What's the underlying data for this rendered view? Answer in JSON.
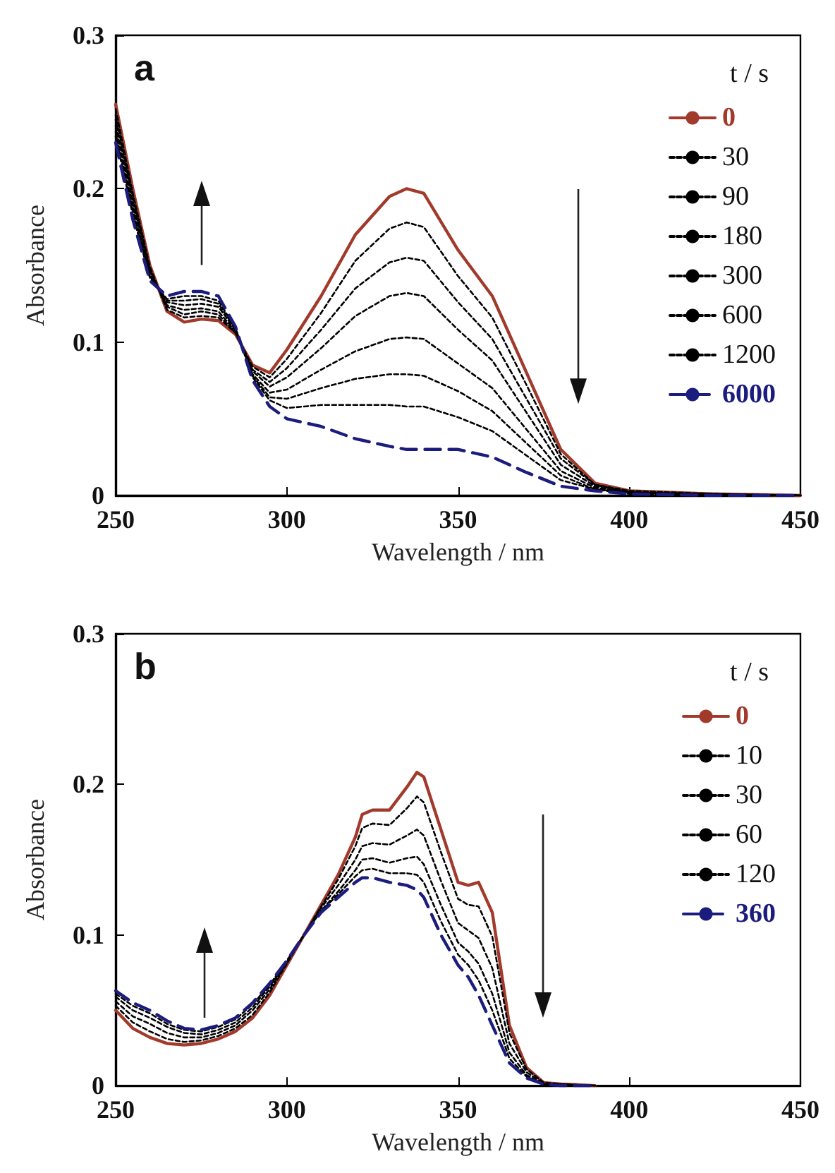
{
  "chart_data": [
    {
      "type": "line",
      "annotations": [
        "a"
      ],
      "xlabel": "Wavelength / nm",
      "ylabel": "Absorbance",
      "legend_title": "t / s",
      "legend": "top right",
      "marker": "none",
      "grid": false,
      "xlim": [
        250,
        450
      ],
      "xticks": [
        250,
        300,
        350,
        400,
        450
      ],
      "ylim": [
        0,
        0.3
      ],
      "yticks": [
        0,
        0.1,
        0.2,
        0.3
      ],
      "x": [
        250,
        255,
        260,
        265,
        270,
        275,
        280,
        285,
        290,
        295,
        300,
        310,
        320,
        330,
        335,
        340,
        350,
        360,
        370,
        380,
        390,
        400,
        425,
        450
      ],
      "series": [
        {
          "name": "0",
          "color": "#a23a2c",
          "line_style": "solid",
          "values": [
            0.255,
            0.2,
            0.15,
            0.12,
            0.113,
            0.115,
            0.114,
            0.105,
            0.085,
            0.08,
            0.095,
            0.13,
            0.17,
            0.195,
            0.2,
            0.197,
            0.16,
            0.13,
            0.08,
            0.03,
            0.008,
            0.003,
            0.001,
            0
          ]
        },
        {
          "name": "30",
          "color": "#000000",
          "line_style": "dotted",
          "values": [
            0.252,
            0.197,
            0.149,
            0.121,
            0.116,
            0.117,
            0.116,
            0.106,
            0.084,
            0.077,
            0.089,
            0.119,
            0.153,
            0.174,
            0.178,
            0.175,
            0.143,
            0.116,
            0.072,
            0.027,
            0.007,
            0.003,
            0.001,
            0
          ]
        },
        {
          "name": "90",
          "color": "#000000",
          "line_style": "dotted",
          "values": [
            0.248,
            0.195,
            0.147,
            0.123,
            0.118,
            0.12,
            0.118,
            0.106,
            0.082,
            0.074,
            0.083,
            0.108,
            0.135,
            0.152,
            0.155,
            0.153,
            0.126,
            0.102,
            0.063,
            0.024,
            0.007,
            0.002,
            0.001,
            0
          ]
        },
        {
          "name": "180",
          "color": "#000000",
          "line_style": "dotted",
          "values": [
            0.245,
            0.192,
            0.146,
            0.124,
            0.121,
            0.122,
            0.12,
            0.107,
            0.081,
            0.071,
            0.077,
            0.096,
            0.117,
            0.13,
            0.132,
            0.13,
            0.108,
            0.088,
            0.054,
            0.02,
            0.006,
            0.002,
            0.001,
            0
          ]
        },
        {
          "name": "300",
          "color": "#000000",
          "line_style": "dotted",
          "values": [
            0.241,
            0.189,
            0.144,
            0.126,
            0.124,
            0.125,
            0.123,
            0.108,
            0.079,
            0.067,
            0.069,
            0.082,
            0.094,
            0.102,
            0.103,
            0.102,
            0.086,
            0.07,
            0.043,
            0.016,
            0.005,
            0.002,
            0,
            0
          ]
        },
        {
          "name": "600",
          "color": "#000000",
          "line_style": "dotted",
          "values": [
            0.237,
            0.186,
            0.143,
            0.127,
            0.127,
            0.128,
            0.125,
            0.109,
            0.078,
            0.064,
            0.063,
            0.07,
            0.076,
            0.079,
            0.079,
            0.078,
            0.068,
            0.055,
            0.034,
            0.013,
            0.004,
            0.002,
            0,
            0
          ]
        },
        {
          "name": "1200",
          "color": "#000000",
          "line_style": "dotted",
          "values": [
            0.234,
            0.183,
            0.142,
            0.128,
            0.13,
            0.13,
            0.127,
            0.109,
            0.077,
            0.062,
            0.057,
            0.059,
            0.059,
            0.059,
            0.058,
            0.058,
            0.051,
            0.042,
            0.026,
            0.01,
            0.004,
            0.001,
            0,
            0
          ]
        },
        {
          "name": "6000",
          "color": "#1c1c7e",
          "line_style": "dashed",
          "values": [
            0.23,
            0.18,
            0.14,
            0.13,
            0.133,
            0.133,
            0.13,
            0.11,
            0.075,
            0.058,
            0.05,
            0.045,
            0.037,
            0.032,
            0.03,
            0.03,
            0.03,
            0.025,
            0.015,
            0.006,
            0.003,
            0.001,
            0,
            0
          ]
        }
      ]
    },
    {
      "type": "line",
      "annotations": [
        "b"
      ],
      "xlabel": "Wavelength / nm",
      "ylabel": "Absorbance",
      "legend_title": "t / s",
      "legend": "top right",
      "marker": "none",
      "grid": false,
      "xlim": [
        250,
        450
      ],
      "xticks": [
        250,
        300,
        350,
        400,
        450
      ],
      "ylim": [
        0,
        0.3
      ],
      "yticks": [
        0,
        0.1,
        0.2,
        0.3
      ],
      "x": [
        250,
        255,
        260,
        265,
        270,
        275,
        280,
        285,
        290,
        295,
        300,
        305,
        310,
        315,
        320,
        322,
        325,
        330,
        335,
        338,
        340,
        345,
        350,
        353,
        356,
        360,
        363,
        365,
        370,
        375,
        380,
        390
      ],
      "series": [
        {
          "name": "0",
          "color": "#a23a2c",
          "line_style": "solid",
          "values": [
            0.05,
            0.038,
            0.032,
            0.028,
            0.027,
            0.028,
            0.031,
            0.036,
            0.045,
            0.06,
            0.08,
            0.1,
            0.12,
            0.14,
            0.165,
            0.18,
            0.183,
            0.183,
            0.198,
            0.208,
            0.205,
            0.17,
            0.135,
            0.133,
            0.135,
            0.115,
            0.07,
            0.04,
            0.012,
            0.002,
            0.001,
            0
          ]
        },
        {
          "name": "10",
          "color": "#000000",
          "line_style": "dotted",
          "values": [
            0.053,
            0.042,
            0.036,
            0.031,
            0.029,
            0.03,
            0.033,
            0.038,
            0.047,
            0.062,
            0.081,
            0.1,
            0.119,
            0.137,
            0.159,
            0.171,
            0.174,
            0.173,
            0.184,
            0.192,
            0.188,
            0.155,
            0.124,
            0.12,
            0.119,
            0.099,
            0.061,
            0.035,
            0.011,
            0.002,
            0.001,
            0
          ]
        },
        {
          "name": "30",
          "color": "#000000",
          "line_style": "dotted",
          "values": [
            0.056,
            0.046,
            0.041,
            0.035,
            0.032,
            0.032,
            0.035,
            0.04,
            0.05,
            0.064,
            0.082,
            0.1,
            0.118,
            0.133,
            0.15,
            0.159,
            0.161,
            0.16,
            0.166,
            0.17,
            0.166,
            0.136,
            0.108,
            0.103,
            0.098,
            0.078,
            0.048,
            0.028,
            0.009,
            0.001,
            0.001,
            0
          ]
        },
        {
          "name": "60",
          "color": "#000000",
          "line_style": "dotted",
          "values": [
            0.059,
            0.05,
            0.045,
            0.039,
            0.035,
            0.034,
            0.037,
            0.042,
            0.052,
            0.066,
            0.082,
            0.1,
            0.116,
            0.129,
            0.143,
            0.15,
            0.151,
            0.148,
            0.151,
            0.152,
            0.147,
            0.12,
            0.095,
            0.089,
            0.081,
            0.061,
            0.038,
            0.022,
            0.007,
            0.001,
            0,
            0
          ]
        },
        {
          "name": "120",
          "color": "#000000",
          "line_style": "dotted",
          "values": [
            0.061,
            0.053,
            0.048,
            0.041,
            0.037,
            0.036,
            0.039,
            0.044,
            0.054,
            0.067,
            0.083,
            0.1,
            0.116,
            0.127,
            0.139,
            0.143,
            0.144,
            0.141,
            0.141,
            0.14,
            0.135,
            0.109,
            0.087,
            0.08,
            0.07,
            0.05,
            0.031,
            0.018,
            0.006,
            0.001,
            0,
            0
          ]
        },
        {
          "name": "360",
          "color": "#1c1c7e",
          "line_style": "dashed",
          "values": [
            0.063,
            0.055,
            0.05,
            0.043,
            0.038,
            0.037,
            0.04,
            0.045,
            0.055,
            0.068,
            0.083,
            0.1,
            0.115,
            0.125,
            0.135,
            0.138,
            0.138,
            0.135,
            0.133,
            0.13,
            0.125,
            0.1,
            0.08,
            0.072,
            0.06,
            0.04,
            0.025,
            0.015,
            0.005,
            0.001,
            0,
            0
          ]
        }
      ]
    }
  ]
}
